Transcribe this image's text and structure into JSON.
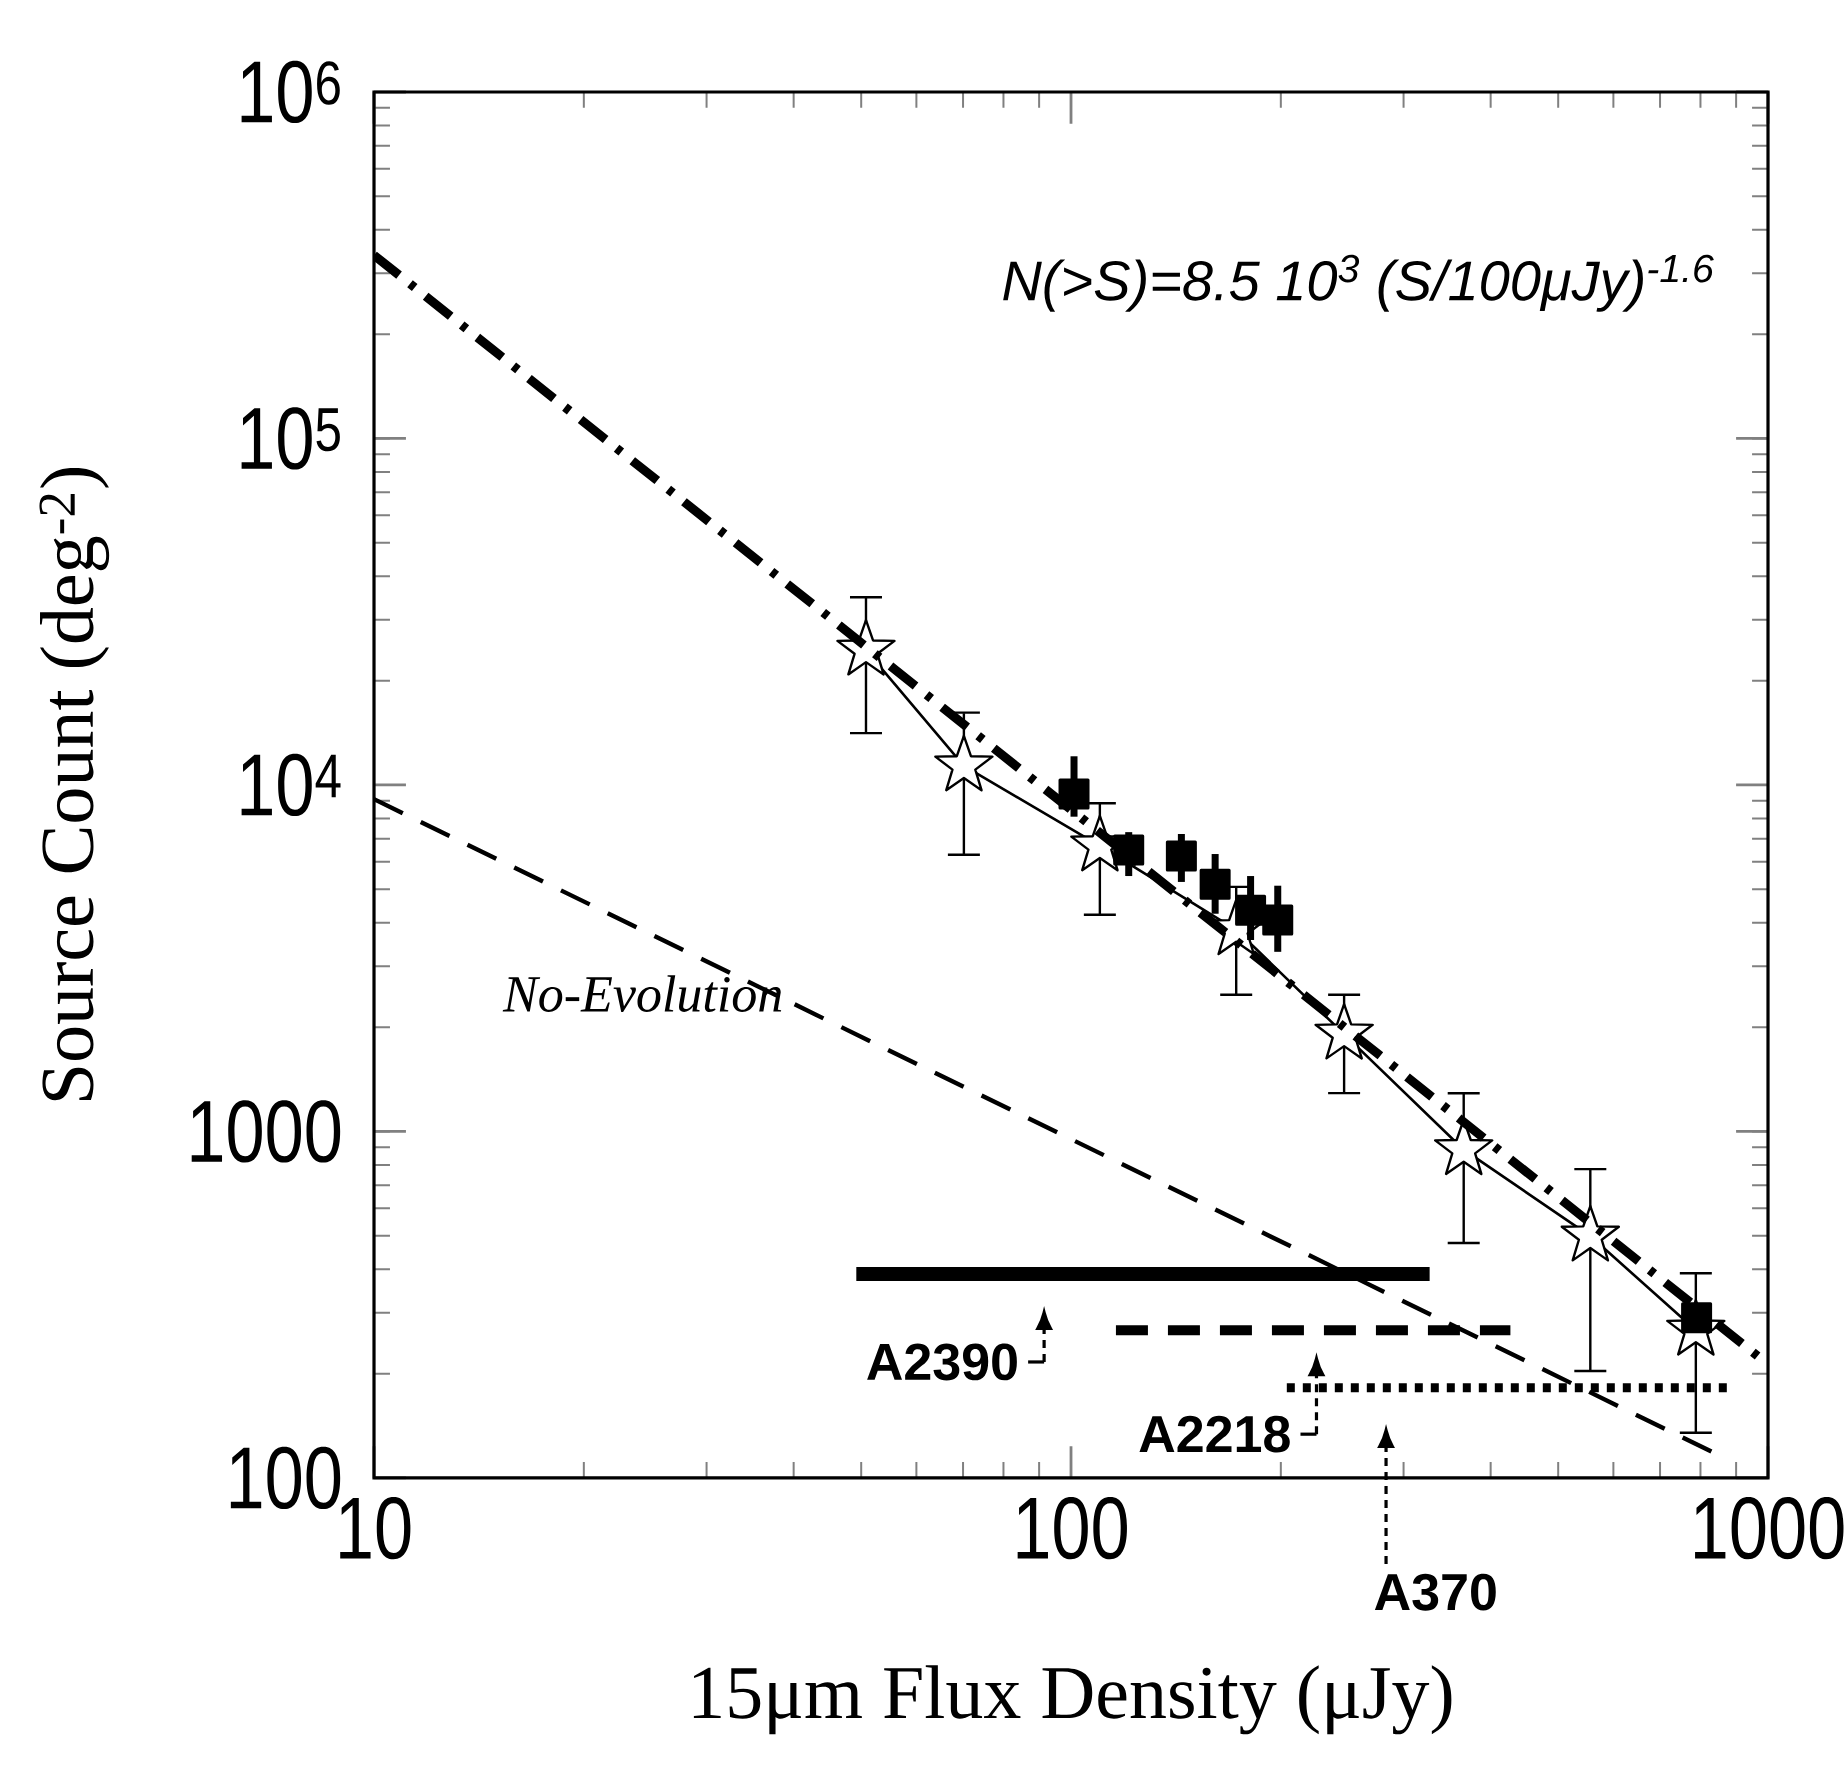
{
  "chart_data": {
    "type": "line",
    "xlabel": "15μm Flux Density (μJy)",
    "ylabel": "Source Count (deg$^{-2}$)",
    "log": "xy",
    "xlim": [
      10,
      1000
    ],
    "ylim": [
      100,
      1000000
    ],
    "xticks": [
      10,
      100,
      1000
    ],
    "yticks": [
      100,
      1000,
      {
        "value": 10000,
        "label": "10$^{4}$"
      },
      {
        "value": 100000,
        "label": "10$^{5}$"
      },
      {
        "value": 1000000,
        "label": "10$^{6}$"
      }
    ],
    "annotations": [
      "N(>S)=8.5 10$^{3}$ (S/100μJy)$^{-1.6}$",
      {
        "text": "A2390",
        "x": 91.5,
        "y": 388
      },
      {
        "text": "A2218",
        "x": 225,
        "y": 267
      },
      "A370"
    ],
    "series": [
      {
        "marker": "star",
        "line_style": "solid",
        "color": "#000000",
        "x": [
          50.8,
          70.2,
          110,
          172.6,
          246.5,
          366,
          556,
          788
        ],
        "values": [
          24500,
          11350,
          6670,
          3820,
          1910,
          886,
          499,
          267
        ],
        "errors": [
          [
            14000,
            35100
          ],
          [
            6240,
            16300
          ],
          [
            4190,
            8930
          ],
          [
            2460,
            5120
          ],
          [
            1280,
            2500
          ],
          [
            473,
            1300
          ],
          [
            202,
            785
          ],
          [
            134,
            393
          ]
        ]
      },
      {
        "type": "scatter",
        "marker": "square",
        "color": "#000000",
        "x": [
          101,
          121,
          144,
          161,
          181,
          198,
          790
        ],
        "values": [
          9420,
          6490,
          6240,
          5170,
          4350,
          4080,
          290
        ],
        "errors": [
          [
            8100,
            12100
          ],
          [
            5460,
            7310
          ],
          [
            5250,
            7220
          ],
          [
            4250,
            6320
          ],
          [
            3570,
            5460
          ],
          [
            3300,
            5120
          ],
          null
        ]
      },
      {
        "marker": "none",
        "line_style": "dashdot",
        "color": "#000000",
        "x": [
          10,
          1000
        ],
        "values": [
          338000,
          213
        ]
      },
      {
        "marker": "none",
        "line_style": "dashed",
        "color": "#000000",
        "name": "No-Evolution",
        "x": [
          10,
          853
        ],
        "values": [
          9100,
          116
        ]
      },
      {
        "marker": "none",
        "line_style": "solid",
        "color": "#000000",
        "x": [
          49.2,
          327
        ],
        "values": [
          388,
          388
        ]
      },
      {
        "marker": "none",
        "line_style": "dashed",
        "color": "#000000",
        "x": [
          116,
          427
        ],
        "values": [
          267,
          267
        ]
      },
      {
        "marker": "none",
        "line_style": "dotted",
        "color": "#000000",
        "x": [
          204,
          893
        ],
        "values": [
          182,
          182
        ]
      }
    ]
  }
}
